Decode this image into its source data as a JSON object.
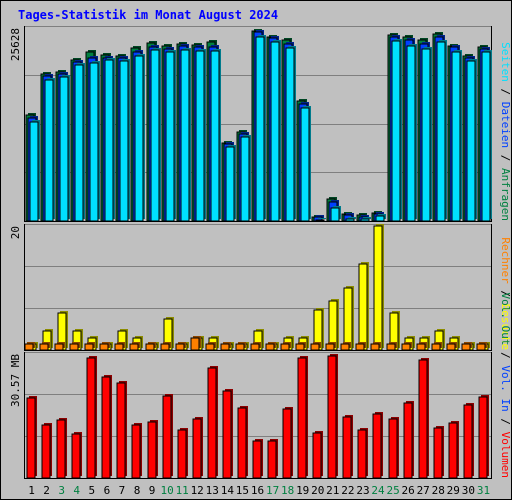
{
  "title": "Tages-Statistik im Monat August 2024",
  "chart_data": {
    "type": "bar",
    "title": "Tages-Statistik im Monat August 2024",
    "days": [
      "1",
      "2",
      "3",
      "4",
      "5",
      "6",
      "7",
      "8",
      "9",
      "10",
      "11",
      "12",
      "13",
      "14",
      "15",
      "16",
      "17",
      "18",
      "19",
      "20",
      "21",
      "22",
      "23",
      "24",
      "25",
      "26",
      "27",
      "28",
      "29",
      "30",
      "31"
    ],
    "weekend_days": [
      "3",
      "4",
      "10",
      "11",
      "17",
      "18",
      "24",
      "25",
      "31"
    ],
    "colors": {
      "anfragen": "#008040",
      "dateien": "#0040ff",
      "seiten": "#00e0ff",
      "besuche": "#ffff00",
      "rechner": "#ff8000",
      "vol_out": "#008040",
      "vol_in": "#0040ff",
      "volumen": "#ff0000",
      "weekday_label": "#000000",
      "weekend_label": "#008040",
      "title": "#0000ff",
      "background": "#c0c0c0"
    },
    "panels": [
      {
        "id": "hits",
        "axis_max_label": "25628",
        "ymax": 25628,
        "legend": [
          {
            "label": "Anfragen",
            "key": "anfragen"
          },
          {
            "label": "Dateien",
            "key": "dateien"
          },
          {
            "label": "Seiten",
            "key": "seiten"
          }
        ],
        "series": [
          {
            "key": "anfragen",
            "values": [
              14200,
              19700,
              20000,
              21600,
              22700,
              22300,
              22100,
              23200,
              23900,
              23400,
              23700,
              23600,
              24000,
              10500,
              11900,
              25500,
              24700,
              24300,
              16100,
              600,
              3000,
              1000,
              800,
              1100,
              24900,
              24600,
              24300,
              25100,
              23500,
              22100,
              23300
            ]
          },
          {
            "key": "dateien",
            "values": [
              13800,
              19400,
              19700,
              21300,
              21800,
              21900,
              21800,
              22700,
              23300,
              23000,
              23400,
              23300,
              23300,
              10300,
              11700,
              25300,
              24500,
              23700,
              15700,
              500,
              2500,
              800,
              600,
              1000,
              24700,
              24300,
              23700,
              24700,
              23300,
              21800,
              23100
            ]
          },
          {
            "key": "seiten",
            "values": [
              13300,
              18900,
              19300,
              20900,
              21200,
              21600,
              21400,
              22100,
              22900,
              22600,
              22900,
              22800,
              22800,
              9900,
              11300,
              24600,
              24000,
              23200,
              15200,
              200,
              1800,
              300,
              300,
              700,
              24100,
              23500,
              23000,
              24000,
              22600,
              21400,
              22600
            ]
          }
        ]
      },
      {
        "id": "visits",
        "axis_max_label": "20",
        "ymax": 20,
        "legend": [
          {
            "label": "Besuche",
            "key": "besuche"
          },
          {
            "label": "Rechner",
            "key": "rechner"
          }
        ],
        "series": [
          {
            "key": "besuche",
            "values": [
              1,
              3,
              6,
              3,
              2,
              1,
              3,
              2,
              1,
              5,
              1,
              2,
              2,
              1,
              1,
              3,
              1,
              2,
              2,
              6.5,
              8,
              10,
              14,
              20,
              6,
              2,
              2,
              3,
              2,
              1,
              1
            ]
          },
          {
            "key": "rechner",
            "values": [
              1,
              1,
              1,
              1,
              1,
              1,
              1,
              1,
              1,
              1,
              1,
              2,
              1,
              1,
              1,
              1,
              1,
              1,
              1,
              1,
              1,
              1,
              1,
              1,
              1,
              1,
              1,
              1,
              1,
              1,
              1
            ]
          }
        ]
      },
      {
        "id": "volume",
        "axis_max_label": "30.57 MB",
        "ymax": 30.57,
        "legend": [
          {
            "label": "Volumen",
            "key": "volumen"
          },
          {
            "label": "Vol. In",
            "key": "vol_in"
          },
          {
            "label": "Vol. Out",
            "key": "vol_out"
          }
        ],
        "series": [
          {
            "key": "volumen",
            "values": [
              19.8,
              13.1,
              14.3,
              10.8,
              29.8,
              25.0,
              23.5,
              13.1,
              13.8,
              20.2,
              11.8,
              14.6,
              27.2,
              21.6,
              17.2,
              9.2,
              9.1,
              17.0,
              29.8,
              11.2,
              30.2,
              15.1,
              11.8,
              15.8,
              14.6,
              18.5,
              29.1,
              12.3,
              13.6,
              18.1,
              20.1
            ]
          }
        ]
      }
    ]
  }
}
